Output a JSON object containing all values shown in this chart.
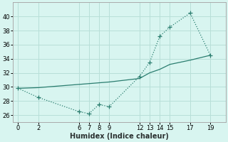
{
  "line_dotted_x": [
    0,
    2,
    6,
    7,
    8,
    9,
    12,
    13,
    14,
    15,
    17,
    19
  ],
  "line_dotted_y": [
    29.8,
    28.5,
    26.5,
    26.2,
    27.5,
    27.2,
    31.5,
    33.5,
    37.2,
    38.5,
    40.5,
    34.5
  ],
  "line_solid_x": [
    0,
    2,
    9,
    12,
    13,
    14,
    15,
    17,
    19
  ],
  "line_solid_y": [
    29.8,
    29.9,
    30.7,
    31.2,
    32.0,
    32.5,
    33.2,
    33.8,
    34.5
  ],
  "color": "#2a7d6f",
  "bg_color": "#d8f5f0",
  "grid_color": "#b8dfd8",
  "xlabel": "Humidex (Indice chaleur)",
  "xticks": [
    0,
    2,
    6,
    7,
    8,
    9,
    12,
    13,
    14,
    15,
    17,
    19
  ],
  "yticks": [
    26,
    28,
    30,
    32,
    34,
    36,
    38,
    40
  ],
  "ylim": [
    25.0,
    42.0
  ],
  "xlim": [
    -0.5,
    20.5
  ]
}
